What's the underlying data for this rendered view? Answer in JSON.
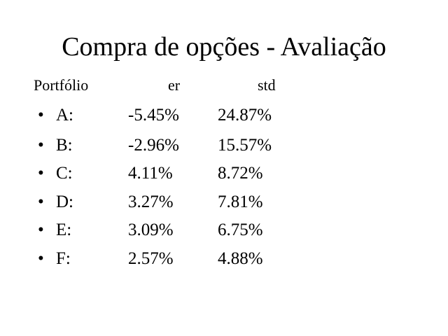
{
  "title": "Compra de opções - Avaliação",
  "table": {
    "header": [
      "Portfólio",
      "er",
      "std"
    ],
    "rows": [
      [
        "A:",
        "-5.45%",
        "24.87%"
      ],
      [
        "B:",
        "-2.96%",
        "15.57%"
      ],
      [
        "C:",
        "4.11%",
        "8.72%"
      ],
      [
        "D:",
        "3.27%",
        "7.81%"
      ],
      [
        "E:",
        "3.09%",
        "6.75%"
      ],
      [
        "F:",
        "2.57%",
        "4.88%"
      ]
    ]
  }
}
